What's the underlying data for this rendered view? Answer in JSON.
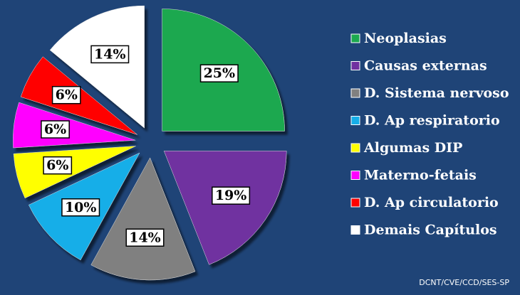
{
  "chart_data": {
    "type": "pie",
    "categories": [
      "Neoplasias",
      "Causas externas",
      "D. Sistema nervoso",
      "D. Ap respiratorio",
      "Algumas DIP",
      "Materno-fetais",
      "D. Ap circulatorio",
      "Demais Capítulos"
    ],
    "series": [
      {
        "values": [
          25,
          19,
          14,
          10,
          6,
          6,
          6,
          14
        ],
        "value_labels": [
          "25%",
          "19%",
          "14%",
          "10%",
          "6%",
          "6%",
          "6%",
          "14%"
        ],
        "colors": [
          "#1ba84f",
          "#7030a0",
          "#808080",
          "#16aee8",
          "#ffff00",
          "#ff00ff",
          "#ff0000",
          "#ffffff"
        ]
      }
    ],
    "legend": "right",
    "source": "DCNT/CVE/CCD/SES-SP"
  }
}
